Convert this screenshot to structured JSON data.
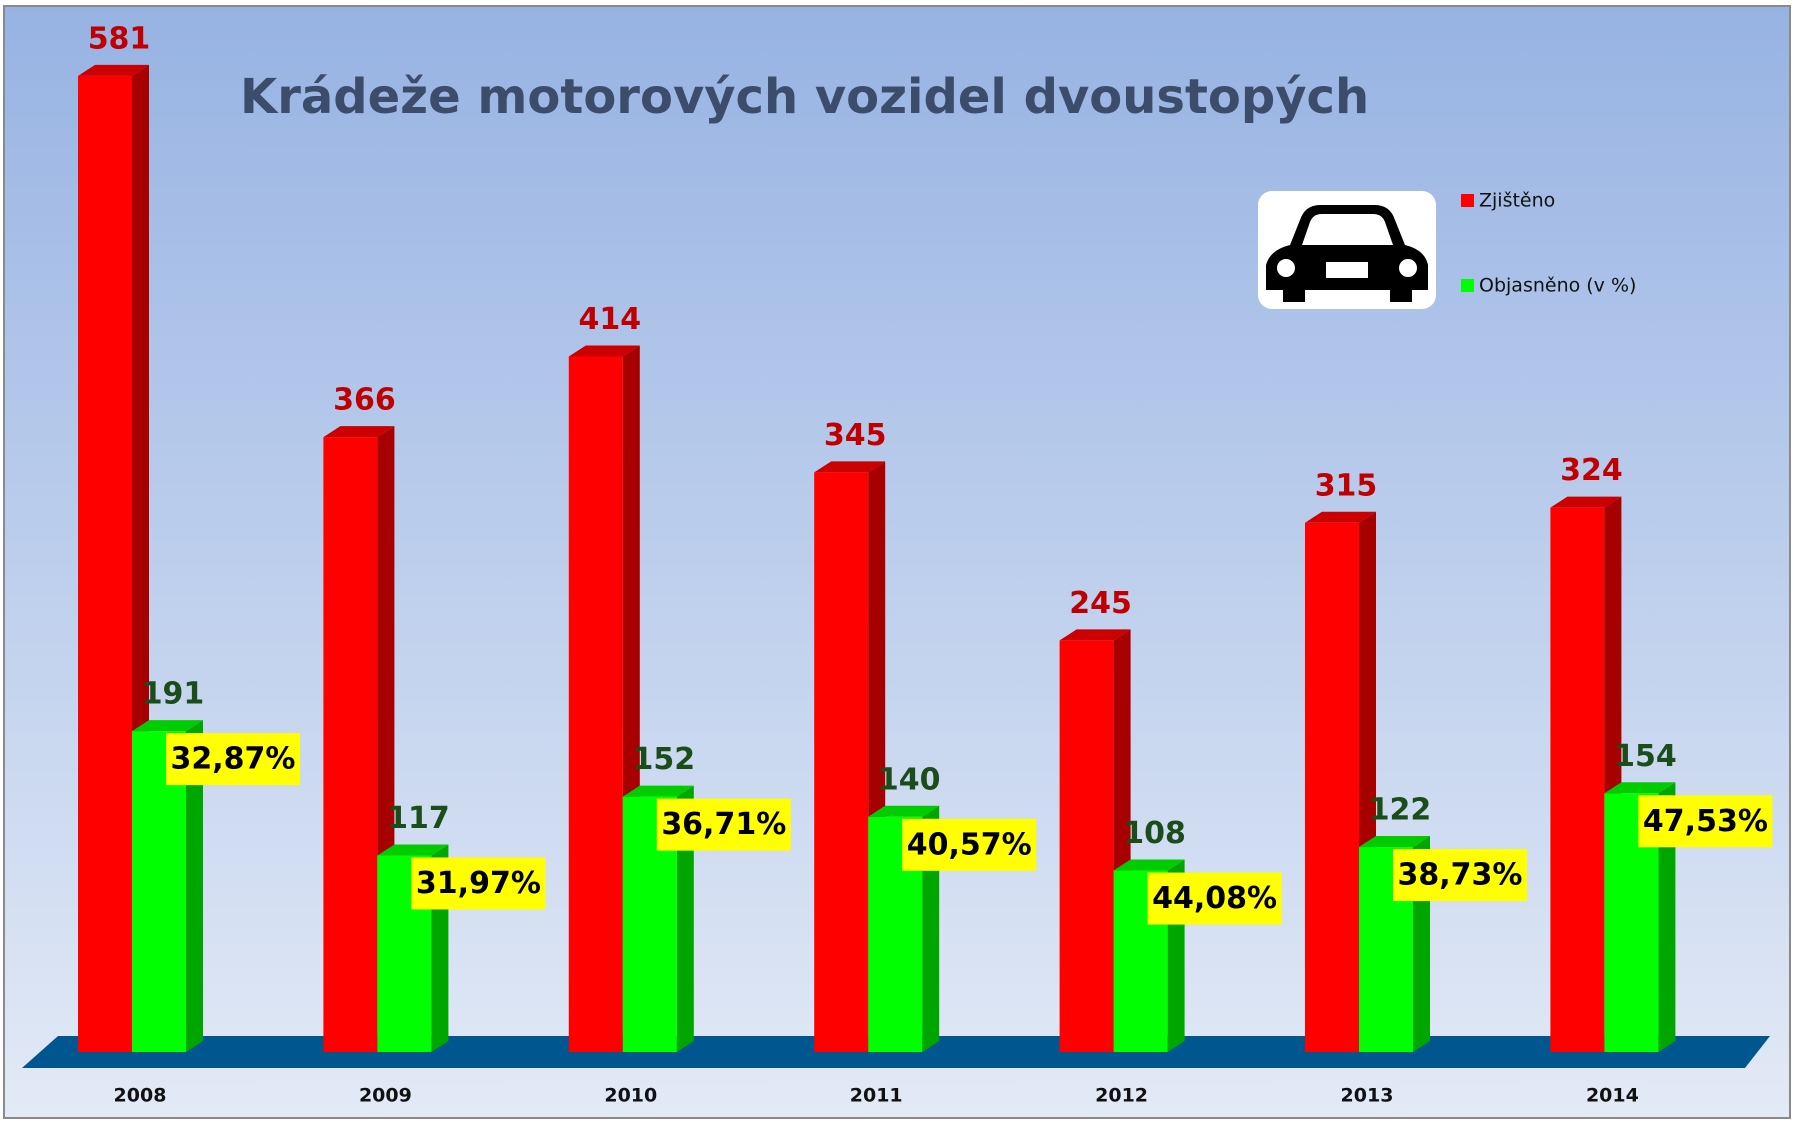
{
  "chart_data": {
    "type": "bar3d",
    "title": "Krádeže motorových vozidel dvoustopých",
    "categories": [
      "2008",
      "2009",
      "2010",
      "2011",
      "2012",
      "2013",
      "2014"
    ],
    "series": [
      {
        "name": "Zjištěno",
        "color": "#ff0000",
        "values": [
          581,
          366,
          414,
          345,
          245,
          315,
          324
        ]
      },
      {
        "name": "Objasněno (v %)",
        "color": "#00ff00",
        "values": [
          191,
          117,
          152,
          140,
          108,
          122,
          154
        ],
        "annotations": [
          "32,87%",
          "31,97%",
          "36,71%",
          "40,57%",
          "44,08%",
          "38,73%",
          "47,53%"
        ]
      }
    ],
    "legend": "top-right"
  }
}
